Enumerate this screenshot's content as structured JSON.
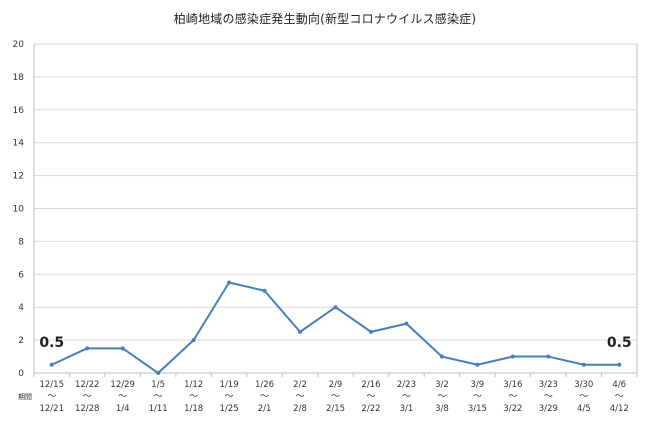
{
  "chart_data": {
    "type": "line",
    "title": "柏崎地域の感染症発生動向(新型コロナウイルス感染症)",
    "period_label": "期間",
    "categories": [
      {
        "start": "12/15",
        "end": "12/21"
      },
      {
        "start": "12/22",
        "end": "12/28"
      },
      {
        "start": "12/29",
        "end": "1/4"
      },
      {
        "start": "1/5",
        "end": "1/11"
      },
      {
        "start": "1/12",
        "end": "1/18"
      },
      {
        "start": "1/19",
        "end": "1/25"
      },
      {
        "start": "1/26",
        "end": "2/1"
      },
      {
        "start": "2/2",
        "end": "2/8"
      },
      {
        "start": "2/9",
        "end": "2/15"
      },
      {
        "start": "2/16",
        "end": "2/22"
      },
      {
        "start": "2/23",
        "end": "3/1"
      },
      {
        "start": "3/2",
        "end": "3/8"
      },
      {
        "start": "3/9",
        "end": "3/15"
      },
      {
        "start": "3/16",
        "end": "3/22"
      },
      {
        "start": "3/23",
        "end": "3/29"
      },
      {
        "start": "3/30",
        "end": "4/5"
      },
      {
        "start": "4/6",
        "end": "4/12"
      }
    ],
    "tilde": "～",
    "values": [
      0.5,
      1.5,
      1.5,
      0,
      2,
      5.5,
      5,
      2.5,
      4,
      2.5,
      3,
      1,
      0.5,
      1,
      1,
      0.5,
      0.5
    ],
    "data_labels": [
      {
        "index": 0,
        "text": "0.5"
      },
      {
        "index": 16,
        "text": "0.5"
      }
    ],
    "ylim": [
      0,
      20
    ],
    "yticks": [
      0,
      2,
      4,
      6,
      8,
      10,
      12,
      14,
      16,
      18,
      20
    ],
    "grid": true,
    "legend": "none",
    "line_color": "#4a7ebb"
  }
}
